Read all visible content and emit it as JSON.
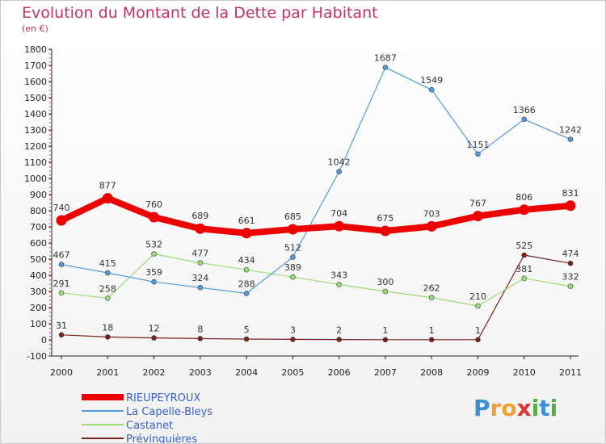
{
  "title": "Evolution du Montant de la Dette par Habitant",
  "unit_label": "(en €)",
  "logo": {
    "text": "Proxiti",
    "letters": [
      "P",
      "r",
      "o",
      "x",
      "i",
      "t",
      "i"
    ],
    "colors": [
      "#3a8fd8",
      "#f0a030",
      "#f0a030",
      "#e03030",
      "#50b040",
      "#3a8fd8",
      "#50b040"
    ]
  },
  "chart_data": {
    "type": "line",
    "x": [
      "2000",
      "2001",
      "2002",
      "2003",
      "2004",
      "2005",
      "2006",
      "2007",
      "2008",
      "2009",
      "2010",
      "2011"
    ],
    "ylim": [
      -100,
      1800
    ],
    "yticks": [
      "-100",
      "0",
      "100",
      "200",
      "300",
      "400",
      "500",
      "600",
      "700",
      "800",
      "900",
      "1000",
      "1100",
      "1200",
      "1300",
      "1400",
      "1500",
      "1600",
      "1700",
      "1800"
    ],
    "grid": false,
    "legend_position": "bottom-left",
    "series": [
      {
        "name": "RIEUPEYROUX",
        "color": "#ee0000",
        "values": [
          740,
          877,
          760,
          689,
          661,
          685,
          704,
          675,
          703,
          767,
          806,
          831
        ],
        "labels": [
          "740",
          "877",
          "760",
          "689",
          "661",
          "685",
          "704",
          "675",
          "703",
          "767",
          "806",
          "831"
        ]
      },
      {
        "name": "La Capelle-Bleys",
        "color": "#5599dd",
        "values": [
          467,
          415,
          359,
          324,
          288,
          512,
          1042,
          1687,
          1549,
          1151,
          1366,
          1242
        ],
        "labels": [
          "467",
          "415",
          "359",
          "324",
          "288",
          "512",
          "1042",
          "1687",
          "1549",
          "1151",
          "1366",
          "1242"
        ]
      },
      {
        "name": "Castanet",
        "color": "#99dd77",
        "values": [
          291,
          258,
          532,
          477,
          434,
          389,
          343,
          300,
          262,
          210,
          381,
          332
        ],
        "labels": [
          "291",
          "258",
          "532",
          "477",
          "434",
          "389",
          "343",
          "300",
          "262",
          "210",
          "381",
          "332"
        ]
      },
      {
        "name": "Prévinquières",
        "color": "#772222",
        "values": [
          31,
          18,
          12,
          8,
          5,
          3,
          2,
          1,
          1,
          1,
          525,
          474
        ],
        "labels": [
          "31",
          "18",
          "12",
          "8",
          "5",
          "3",
          "2",
          "1",
          "1",
          "1",
          "525",
          "474"
        ]
      }
    ]
  }
}
